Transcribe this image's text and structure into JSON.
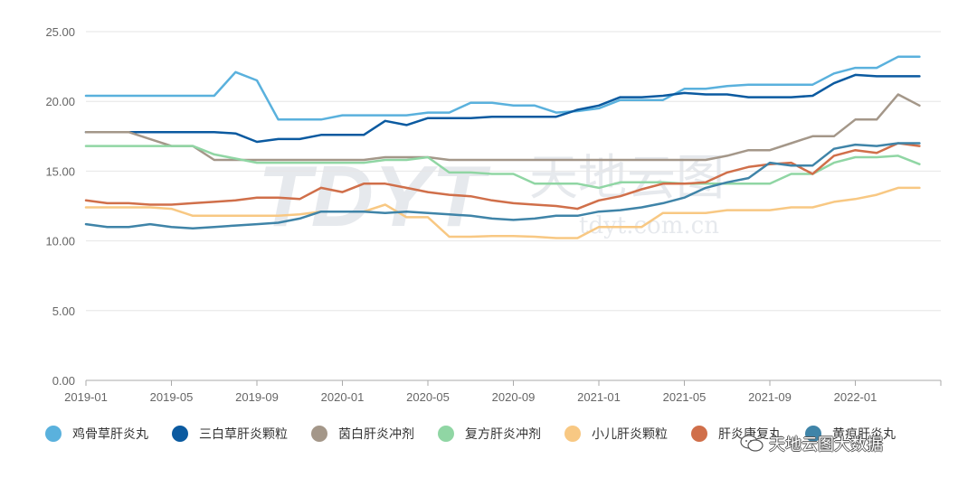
{
  "chart_data": {
    "type": "line",
    "title": "",
    "xlabel": "",
    "ylabel": "",
    "ylim": [
      0,
      25
    ],
    "yticks": [
      "0.00",
      "5.00",
      "10.00",
      "15.00",
      "20.00",
      "25.00"
    ],
    "xticks": [
      "2019-01",
      "2019-05",
      "2019-09",
      "2020-01",
      "2020-05",
      "2020-09",
      "2021-01",
      "2021-05",
      "2021-09",
      "2022-01"
    ],
    "x": [
      "2019-01",
      "2019-02",
      "2019-03",
      "2019-04",
      "2019-05",
      "2019-06",
      "2019-07",
      "2019-08",
      "2019-09",
      "2019-10",
      "2019-11",
      "2019-12",
      "2020-01",
      "2020-02",
      "2020-03",
      "2020-04",
      "2020-05",
      "2020-06",
      "2020-07",
      "2020-08",
      "2020-09",
      "2020-10",
      "2020-11",
      "2020-12",
      "2021-01",
      "2021-02",
      "2021-03",
      "2021-04",
      "2021-05",
      "2021-06",
      "2021-07",
      "2021-08",
      "2021-09",
      "2021-10",
      "2021-11",
      "2021-12",
      "2022-01",
      "2022-02",
      "2022-03",
      "2022-04"
    ],
    "grid": true,
    "legend_position": "bottom",
    "series": [
      {
        "name": "鸡骨草肝炎丸",
        "color": "#5ab1dd",
        "values": [
          20.4,
          20.4,
          20.4,
          20.4,
          20.4,
          20.4,
          20.4,
          22.1,
          21.5,
          18.7,
          18.7,
          18.7,
          19.0,
          19.0,
          19.0,
          19.0,
          19.2,
          19.2,
          19.9,
          19.9,
          19.7,
          19.7,
          19.2,
          19.3,
          19.5,
          20.1,
          20.1,
          20.1,
          20.9,
          20.9,
          21.1,
          21.2,
          21.2,
          21.2,
          21.2,
          22.0,
          22.4,
          22.4,
          23.2,
          23.2
        ]
      },
      {
        "name": "三白草肝炎颗粒",
        "color": "#0b5aa0",
        "values": [
          17.8,
          17.8,
          17.8,
          17.8,
          17.8,
          17.8,
          17.8,
          17.7,
          17.1,
          17.3,
          17.3,
          17.6,
          17.6,
          17.6,
          18.6,
          18.3,
          18.8,
          18.8,
          18.8,
          18.9,
          18.9,
          18.9,
          18.9,
          19.4,
          19.7,
          20.3,
          20.3,
          20.4,
          20.6,
          20.5,
          20.5,
          20.3,
          20.3,
          20.3,
          20.4,
          21.3,
          21.9,
          21.8,
          21.8,
          21.8
        ]
      },
      {
        "name": "茵白肝炎冲剂",
        "color": "#a49789",
        "values": [
          17.8,
          17.8,
          17.8,
          17.3,
          16.8,
          16.8,
          15.8,
          15.8,
          15.8,
          15.8,
          15.8,
          15.8,
          15.8,
          15.8,
          16.0,
          16.0,
          16.0,
          15.8,
          15.8,
          15.8,
          15.8,
          15.8,
          15.8,
          15.8,
          15.8,
          15.8,
          15.8,
          15.8,
          15.8,
          15.8,
          16.1,
          16.5,
          16.5,
          17.0,
          17.5,
          17.5,
          18.7,
          18.7,
          20.5,
          19.7
        ]
      },
      {
        "name": "复方肝炎冲剂",
        "color": "#90d6a4",
        "values": [
          16.8,
          16.8,
          16.8,
          16.8,
          16.8,
          16.8,
          16.2,
          15.9,
          15.6,
          15.6,
          15.6,
          15.6,
          15.6,
          15.6,
          15.8,
          15.8,
          16.0,
          14.9,
          14.9,
          14.8,
          14.8,
          14.1,
          14.1,
          14.1,
          13.8,
          14.2,
          14.2,
          14.2,
          14.1,
          14.1,
          14.1,
          14.1,
          14.1,
          14.8,
          14.8,
          15.6,
          16.0,
          16.0,
          16.1,
          15.5
        ]
      },
      {
        "name": "小儿肝炎颗粒",
        "color": "#f8c883",
        "values": [
          12.4,
          12.4,
          12.4,
          12.4,
          12.3,
          11.8,
          11.8,
          11.8,
          11.8,
          11.8,
          11.9,
          12.1,
          12.1,
          12.1,
          12.6,
          11.7,
          11.7,
          10.3,
          10.3,
          10.35,
          10.35,
          10.3,
          10.2,
          10.2,
          11.0,
          11.0,
          11.0,
          12.0,
          12.0,
          12.0,
          12.2,
          12.2,
          12.2,
          12.4,
          12.4,
          12.8,
          13.0,
          13.3,
          13.8,
          13.8
        ]
      },
      {
        "name": "肝炎康复丸",
        "color": "#d06f4a",
        "values": [
          12.9,
          12.7,
          12.7,
          12.6,
          12.6,
          12.7,
          12.8,
          12.9,
          13.1,
          13.1,
          13.0,
          13.8,
          13.5,
          14.1,
          14.1,
          13.8,
          13.5,
          13.3,
          13.2,
          12.9,
          12.7,
          12.6,
          12.5,
          12.3,
          12.9,
          13.2,
          13.7,
          14.1,
          14.1,
          14.2,
          14.9,
          15.3,
          15.5,
          15.6,
          14.8,
          16.1,
          16.5,
          16.3,
          17.0,
          16.8
        ]
      },
      {
        "name": "黄疸肝炎丸",
        "color": "#3f84a8",
        "values": [
          11.2,
          11.0,
          11.0,
          11.2,
          11.0,
          10.9,
          11.0,
          11.1,
          11.2,
          11.3,
          11.6,
          12.1,
          12.1,
          12.1,
          12.0,
          12.1,
          12.0,
          11.9,
          11.8,
          11.6,
          11.5,
          11.6,
          11.8,
          11.8,
          12.1,
          12.2,
          12.4,
          12.7,
          13.1,
          13.8,
          14.2,
          14.5,
          15.6,
          15.4,
          15.4,
          16.6,
          16.9,
          16.8,
          17.0,
          17.0
        ]
      }
    ]
  },
  "watermark": {
    "center_text": "天地云图",
    "center_url": "tdyt.com.cn",
    "logo_letters": "TDYT",
    "badge_text": "天地云图大数据",
    "badge_icon": "wechat-icon"
  }
}
